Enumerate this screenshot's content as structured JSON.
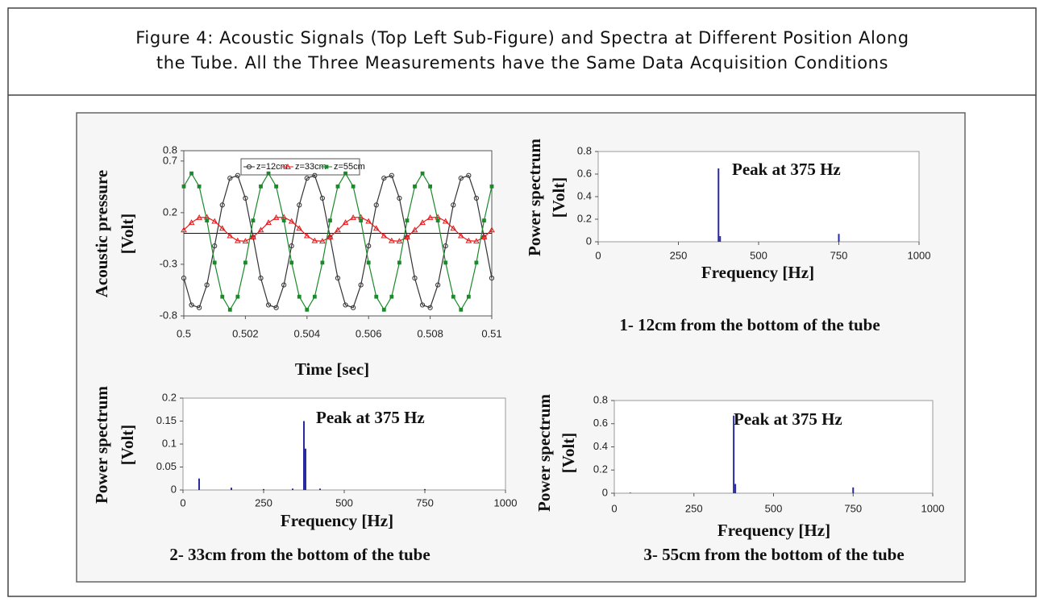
{
  "caption": {
    "lines": [
      "Figure 4: Acoustic Signals (Top Left Sub-Figure) and Spectra at Different Position Along",
      "the Tube. All the Three Measurements have the Same Data Acquisition Conditions"
    ]
  },
  "chart_data": [
    {
      "type": "line",
      "xlabel": "Time [sec]",
      "ylabel": [
        "Acoustic pressure",
        "[Volt]"
      ],
      "xlim": [
        0.5,
        0.51
      ],
      "xticks": [
        0.5,
        0.502,
        0.504,
        0.506,
        0.508,
        0.51
      ],
      "ylim": [
        -0.8,
        0.8
      ],
      "yticks": [
        -0.8,
        -0.3,
        0.2,
        0.7,
        0.8
      ],
      "x": [
        0.5,
        0.50025,
        0.5005,
        0.50075,
        0.501,
        0.50125,
        0.5015,
        0.50175,
        0.502,
        0.50225,
        0.5025,
        0.50275,
        0.503,
        0.50325,
        0.5035,
        0.50375,
        0.504,
        0.50425,
        0.5045,
        0.50475,
        0.505,
        0.50525,
        0.5055,
        0.50575,
        0.506,
        0.50625,
        0.5065,
        0.50675,
        0.507,
        0.50725,
        0.5075,
        0.50775,
        0.508,
        0.50825,
        0.5085,
        0.50875,
        0.509,
        0.50925,
        0.5095,
        0.50975,
        0.51
      ],
      "series": [
        {
          "name": "z=12cm",
          "color": "#333333",
          "marker": "circle",
          "values": [
            -0.434,
            -0.694,
            -0.72,
            -0.5,
            -0.122,
            0.274,
            0.534,
            0.56,
            0.34,
            -0.038,
            -0.434,
            -0.694,
            -0.72,
            -0.5,
            -0.122,
            0.274,
            0.534,
            0.56,
            0.34,
            -0.038,
            -0.434,
            -0.694,
            -0.72,
            -0.5,
            -0.122,
            0.274,
            0.534,
            0.56,
            0.34,
            -0.038,
            -0.434,
            -0.694,
            -0.72,
            -0.5,
            -0.122,
            0.274,
            0.534,
            0.56,
            0.34,
            -0.038,
            -0.434
          ]
        },
        {
          "name": "z=33cm",
          "color": "#e8191b",
          "marker": "triangle",
          "values": [
            0.032,
            0.104,
            0.152,
            0.156,
            0.116,
            0.048,
            -0.024,
            -0.072,
            -0.076,
            -0.036,
            0.032,
            0.104,
            0.152,
            0.156,
            0.116,
            0.048,
            -0.024,
            -0.072,
            -0.076,
            -0.036,
            0.032,
            0.104,
            0.152,
            0.156,
            0.116,
            0.048,
            -0.024,
            -0.072,
            -0.076,
            -0.036,
            0.032,
            0.104,
            0.152,
            0.156,
            0.116,
            0.048,
            -0.024,
            -0.072,
            -0.076,
            -0.036,
            0.032
          ]
        },
        {
          "name": "z=55cm",
          "color": "#1a8a2a",
          "marker": "square",
          "values": [
            0.454,
            0.58,
            0.454,
            0.124,
            -0.284,
            -0.614,
            -0.74,
            -0.614,
            -0.284,
            0.124,
            0.454,
            0.58,
            0.454,
            0.124,
            -0.284,
            -0.614,
            -0.74,
            -0.614,
            -0.284,
            0.124,
            0.454,
            0.58,
            0.454,
            0.124,
            -0.284,
            -0.614,
            -0.74,
            -0.614,
            -0.284,
            0.124,
            0.454,
            0.58,
            0.454,
            0.124,
            -0.284,
            -0.614,
            -0.74,
            -0.614,
            -0.284,
            0.124,
            0.454
          ]
        }
      ]
    },
    {
      "type": "stem",
      "title": "1- 12cm from the bottom of the tube",
      "annotation": "Peak at 375 Hz",
      "xlabel": "Frequency [Hz]",
      "ylabel": [
        "Power spectrum",
        "[Volt]"
      ],
      "xlim": [
        0,
        1000
      ],
      "xticks": [
        0,
        250,
        500,
        750,
        1000
      ],
      "ylim": [
        0,
        0.8
      ],
      "yticks": [
        0,
        0.2,
        0.4,
        0.6,
        0.8
      ],
      "color": "#2a2aa0",
      "x": [
        375,
        380,
        750
      ],
      "values": [
        0.65,
        0.05,
        0.07
      ]
    },
    {
      "type": "stem",
      "title": "2- 33cm from the bottom of the tube",
      "annotation": "Peak at 375 Hz",
      "xlabel": "Frequency [Hz]",
      "ylabel": [
        "Power spectrum",
        "[Volt]"
      ],
      "xlim": [
        0,
        1000
      ],
      "xticks": [
        0,
        250,
        500,
        750,
        1000
      ],
      "ylim": [
        0,
        0.2
      ],
      "yticks": [
        0,
        0.05,
        0.1,
        0.15,
        0.2
      ],
      "color": "#2a2aa0",
      "x": [
        50,
        150,
        250,
        340,
        375,
        380,
        425,
        750
      ],
      "values": [
        0.025,
        0.005,
        0.002,
        0.003,
        0.15,
        0.09,
        0.003,
        0.002
      ]
    },
    {
      "type": "stem",
      "title": "3- 55cm from the bottom of the tube",
      "annotation": "Peak at 375 Hz",
      "xlabel": "Frequency [Hz]",
      "ylabel": [
        "Power spectrum",
        "[Volt]"
      ],
      "xlim": [
        0,
        1000
      ],
      "xticks": [
        0,
        250,
        500,
        750,
        1000
      ],
      "ylim": [
        0,
        0.8
      ],
      "yticks": [
        0,
        0.2,
        0.4,
        0.6,
        0.8
      ],
      "color": "#2a2aa0",
      "x": [
        50,
        375,
        380,
        750
      ],
      "values": [
        0.005,
        0.67,
        0.08,
        0.05
      ]
    }
  ]
}
